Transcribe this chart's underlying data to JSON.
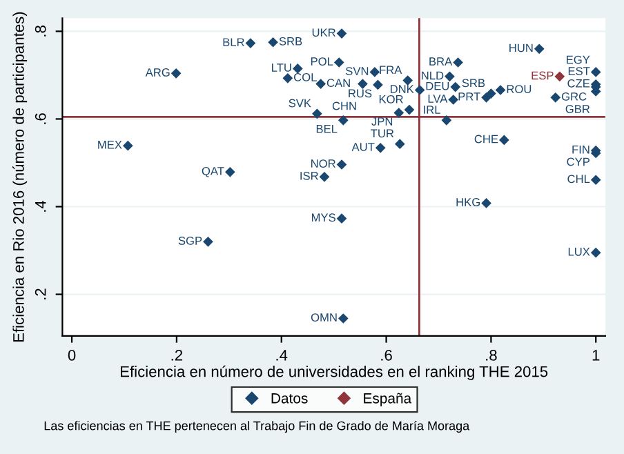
{
  "chart_data": {
    "type": "scatter",
    "xlabel": "Eficiencia en número de universidades en el ranking THE 2015",
    "ylabel": "Eficiencia en Rio 2016 (número de participantes)",
    "xlim": [
      -0.018,
      1.018
    ],
    "ylim": [
      0.105,
      0.83
    ],
    "xticks": [
      0,
      {
        "value": 0.2,
        "label": ".2"
      },
      {
        "value": 0.4,
        "label": ".4"
      },
      {
        "value": 0.6,
        "label": ".6"
      },
      {
        "value": 0.8,
        "label": ".8"
      },
      1
    ],
    "yticks": [
      {
        "value": 0.2,
        "label": ".2"
      },
      {
        "value": 0.4,
        "label": ".4"
      },
      {
        "value": 0.6,
        "label": ".6"
      },
      {
        "value": 0.8,
        "label": ".8"
      }
    ],
    "grid": "y",
    "legend": "bottom",
    "marker": "diamond",
    "ref_lines": [
      {
        "axis": "y",
        "value": 0.605,
        "color": "#90353b"
      },
      {
        "axis": "x",
        "value": 0.663,
        "color": "#90353b"
      }
    ],
    "series": [
      {
        "name": "Datos",
        "color": "#1a476f",
        "x": [
          0.515,
          0.384,
          0.341,
          0.199,
          0.431,
          0.51,
          0.412,
          0.475,
          0.468,
          0.518,
          0.107,
          0.302,
          0.515,
          0.482,
          0.515,
          0.26,
          0.518,
          0.578,
          0.641,
          0.584,
          0.555,
          0.732,
          0.721,
          0.737,
          0.664,
          0.728,
          0.791,
          0.8,
          0.818,
          0.892,
          0.923,
          1.0,
          1.0,
          1.0,
          1.0,
          0.644,
          0.624,
          0.715,
          0.825,
          0.626,
          0.589,
          1.0,
          1.0,
          1.0,
          0.791,
          1.0
        ],
        "values": [
          0.795,
          0.775,
          0.773,
          0.704,
          0.715,
          0.729,
          0.693,
          0.68,
          0.612,
          0.597,
          0.539,
          0.479,
          0.496,
          0.468,
          0.373,
          0.32,
          0.145,
          0.707,
          0.688,
          0.678,
          0.68,
          0.673,
          0.697,
          0.729,
          0.666,
          0.644,
          0.649,
          0.658,
          0.666,
          0.76,
          0.649,
          0.707,
          0.679,
          0.673,
          0.663,
          0.621,
          0.614,
          0.597,
          0.552,
          0.543,
          0.534,
          0.528,
          0.522,
          0.461,
          0.408,
          0.295
        ]
      },
      {
        "name": "España",
        "color": "#90353b",
        "x": [
          0.931
        ],
        "values": [
          0.697
        ]
      }
    ],
    "annotations": [
      {
        "text": "UKR",
        "x": 0.515,
        "y": 0.795
      },
      {
        "text": "SRB",
        "x": 0.384,
        "y": 0.775
      },
      {
        "text": "BLR",
        "x": 0.341,
        "y": 0.773
      },
      {
        "text": "ARG",
        "x": 0.199,
        "y": 0.704
      },
      {
        "text": "LTU",
        "x": 0.431,
        "y": 0.715
      },
      {
        "text": "POL",
        "x": 0.51,
        "y": 0.729
      },
      {
        "text": "COL",
        "x": 0.412,
        "y": 0.693
      },
      {
        "text": "CAN",
        "x": 0.475,
        "y": 0.68
      },
      {
        "text": "SVK",
        "x": 0.468,
        "y": 0.612
      },
      {
        "text": "BEL",
        "x": 0.518,
        "y": 0.597
      },
      {
        "text": "MEX",
        "x": 0.107,
        "y": 0.539
      },
      {
        "text": "QAT",
        "x": 0.302,
        "y": 0.479
      },
      {
        "text": "NOR",
        "x": 0.515,
        "y": 0.496
      },
      {
        "text": "ISR",
        "x": 0.482,
        "y": 0.468
      },
      {
        "text": "MYS",
        "x": 0.515,
        "y": 0.373
      },
      {
        "text": "SGP",
        "x": 0.26,
        "y": 0.32
      },
      {
        "text": "OMN",
        "x": 0.518,
        "y": 0.145
      },
      {
        "text": "SVN",
        "x": 0.578,
        "y": 0.707
      },
      {
        "text": "FRA",
        "x": 0.641,
        "y": 0.688
      },
      {
        "text": "RUS",
        "x": 0.584,
        "y": 0.678
      },
      {
        "text": "CHN",
        "x": 0.555,
        "y": 0.68
      },
      {
        "text": "DEU",
        "x": 0.732,
        "y": 0.673
      },
      {
        "text": "NLD",
        "x": 0.721,
        "y": 0.697
      },
      {
        "text": "BRA",
        "x": 0.737,
        "y": 0.729
      },
      {
        "text": "DNK",
        "x": 0.664,
        "y": 0.666
      },
      {
        "text": "LVA",
        "x": 0.728,
        "y": 0.644
      },
      {
        "text": "PRT",
        "x": 0.791,
        "y": 0.649
      },
      {
        "text": "SRB",
        "x": 0.8,
        "y": 0.658
      },
      {
        "text": "ROU",
        "x": 0.818,
        "y": 0.666
      },
      {
        "text": "HUN",
        "x": 0.892,
        "y": 0.76
      },
      {
        "text": "GRC",
        "x": 0.923,
        "y": 0.649
      },
      {
        "text": "EST",
        "x": 1.0,
        "y": 0.707
      },
      {
        "text": "CZE",
        "x": 1.0,
        "y": 0.679
      },
      {
        "text": "GBR",
        "x": 1.0,
        "y": 0.673
      },
      {
        "text": "EGY",
        "x": 1.0,
        "y": 0.663
      },
      {
        "text": "KOR",
        "x": 0.644,
        "y": 0.621
      },
      {
        "text": "JPN",
        "x": 0.624,
        "y": 0.614
      },
      {
        "text": "IRL",
        "x": 0.715,
        "y": 0.597
      },
      {
        "text": "CHE",
        "x": 0.825,
        "y": 0.552
      },
      {
        "text": "TUR",
        "x": 0.626,
        "y": 0.543
      },
      {
        "text": "AUT",
        "x": 0.589,
        "y": 0.534
      },
      {
        "text": "FIN",
        "x": 1.0,
        "y": 0.528
      },
      {
        "text": "CYP",
        "x": 1.0,
        "y": 0.522
      },
      {
        "text": "CHL",
        "x": 1.0,
        "y": 0.461
      },
      {
        "text": "HKG",
        "x": 0.791,
        "y": 0.408
      },
      {
        "text": "LUX",
        "x": 1.0,
        "y": 0.295
      },
      {
        "text": "ESP",
        "x": 0.931,
        "y": 0.697
      },
      "Las eficiencias en THE pertenecen al Trabajo Fin de Grado de María Moraga"
    ]
  }
}
